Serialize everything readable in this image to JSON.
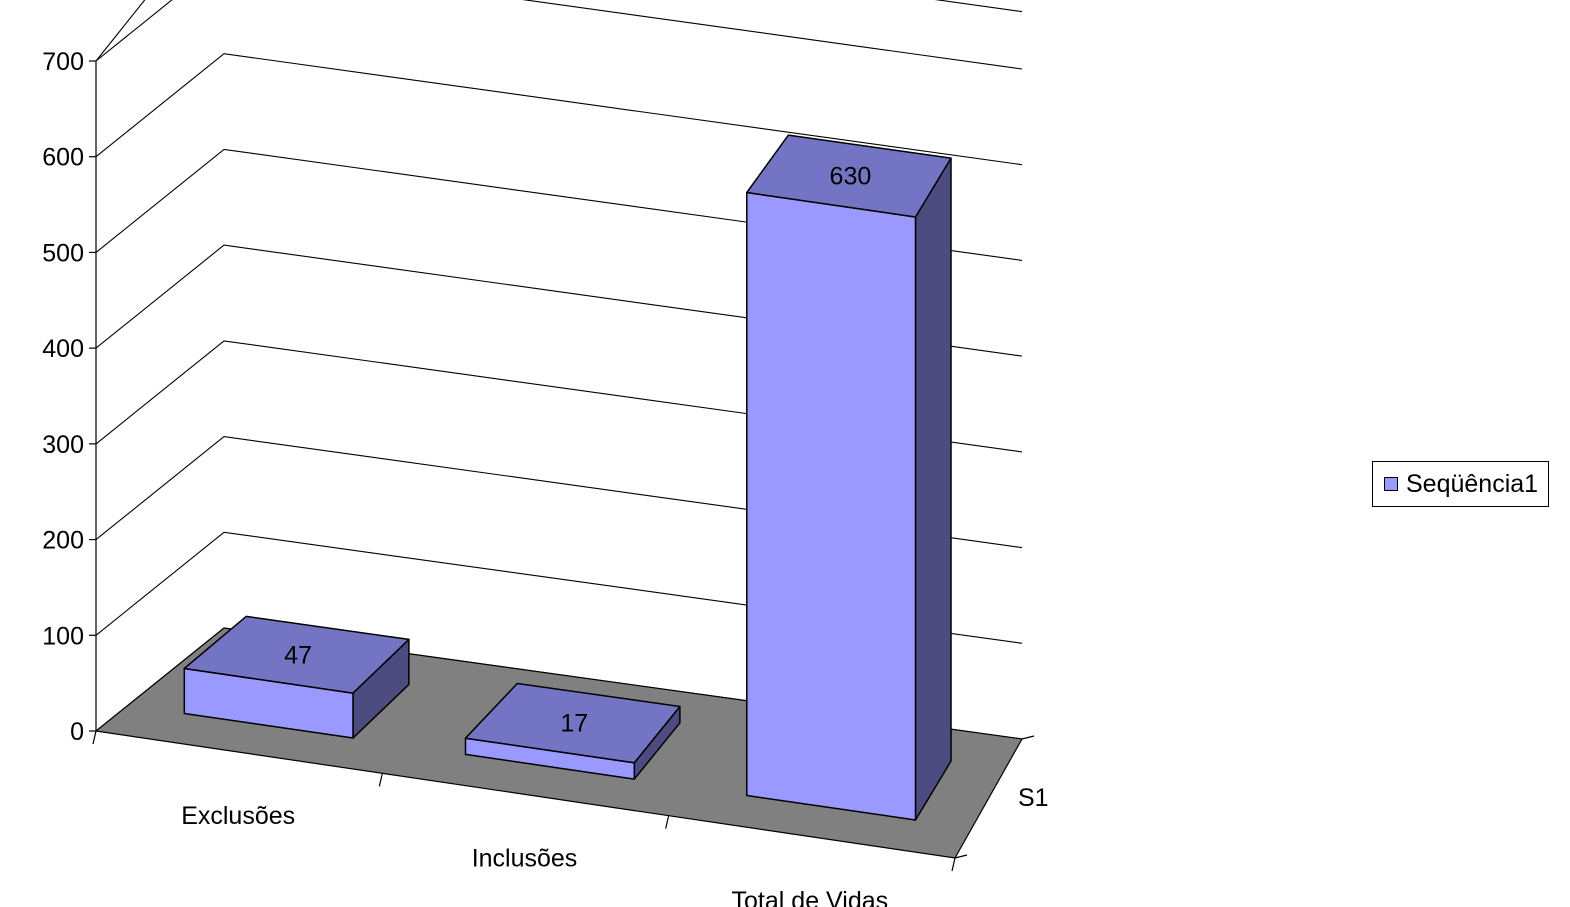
{
  "chart_data": {
    "type": "bar",
    "categories": [
      "Exclusões",
      "Inclusões",
      "Total de Vidas"
    ],
    "series": [
      {
        "name": "Seqüência1",
        "depth_label": "S1",
        "values": [
          47,
          17,
          630
        ],
        "color": "#9999ff",
        "top_color": "#7474c4",
        "side_color": "#4c4c80"
      }
    ],
    "ylim": [
      0,
      700
    ],
    "yticks": [
      0,
      100,
      200,
      300,
      400,
      500,
      600,
      700
    ],
    "data_labels": [
      "47",
      "17",
      "630"
    ],
    "floor_color": "#808080",
    "grid": true,
    "legend_position": "right"
  },
  "legend": {
    "label": "Seqüência1"
  }
}
